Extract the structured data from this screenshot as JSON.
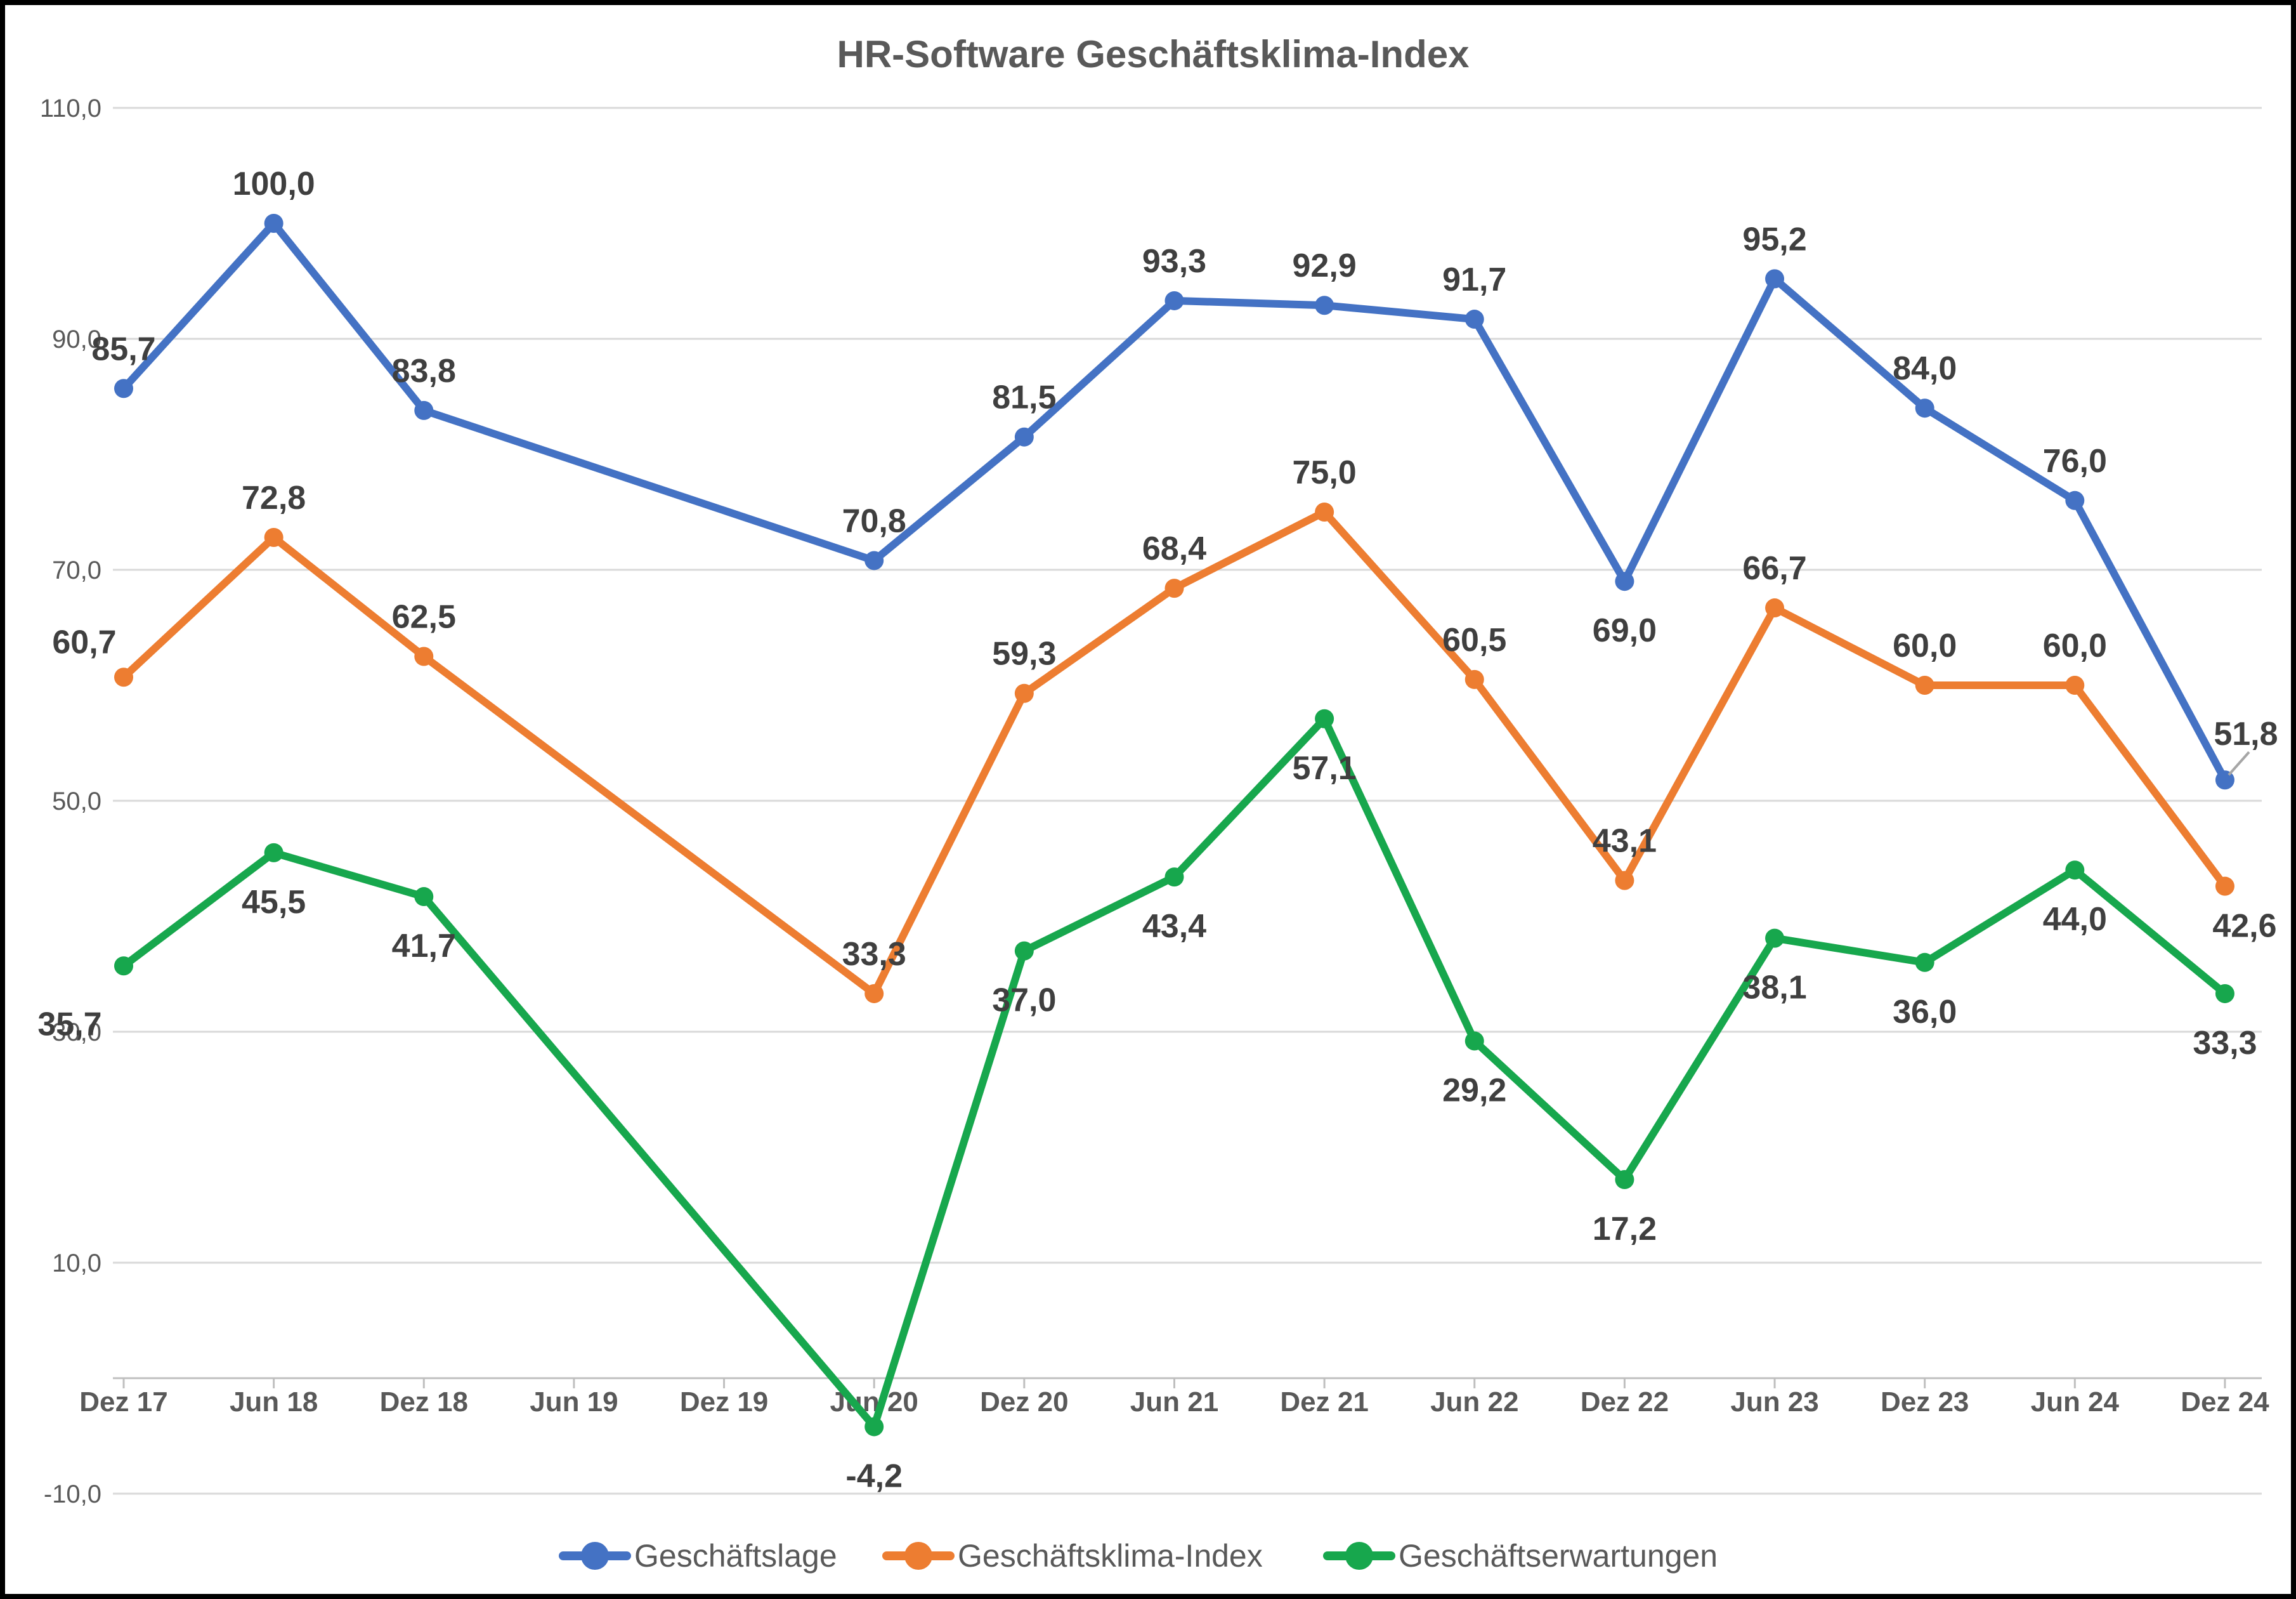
{
  "chart_data": {
    "type": "line",
    "title": "HR-Software Geschäftsklima-Index",
    "categories": [
      "Dez 17",
      "Jun 18",
      "Dez 18",
      "Jun 19",
      "Dez 19",
      "Jun 20",
      "Dez 20",
      "Jun 21",
      "Dez 21",
      "Jun 22",
      "Dez 22",
      "Jun 23",
      "Dez 23",
      "Jun 24",
      "Dez 24"
    ],
    "y_axis": {
      "min": -10,
      "max": 110,
      "step": 20,
      "tick_labels": [
        "110,0",
        "90,0",
        "70,0",
        "50,0",
        "30,0",
        "10,0",
        "-10,0"
      ],
      "grid": true
    },
    "legend_position": "bottom",
    "series": [
      {
        "name": "Geschäftslage",
        "color": "#4472C4",
        "values": [
          85.7,
          100.0,
          83.8,
          null,
          null,
          70.8,
          81.5,
          93.3,
          92.9,
          91.7,
          69.0,
          95.2,
          84.0,
          76.0,
          51.8
        ],
        "labels": [
          "85,7",
          "100,0",
          "83,8",
          null,
          null,
          "70,8",
          "81,5",
          "93,3",
          "92,9",
          "91,7",
          "69,0",
          "95,2",
          "84,0",
          "76,0",
          "51,8"
        ],
        "label_pos": [
          "above",
          "above",
          "above",
          null,
          null,
          "above",
          "above",
          "above",
          "above",
          "above",
          "below",
          "above",
          "above",
          "above",
          "above-right-leader"
        ]
      },
      {
        "name": "Geschäftsklima-Index",
        "color": "#ED7D31",
        "values": [
          60.7,
          72.8,
          62.5,
          null,
          null,
          33.3,
          59.3,
          68.4,
          75.0,
          60.5,
          43.1,
          66.7,
          60.0,
          60.0,
          42.6
        ],
        "labels": [
          "60,7",
          "72,8",
          "62,5",
          null,
          null,
          "33,3",
          "59,3",
          "68,4",
          "75,0",
          "60,5",
          "43,1",
          "66,7",
          "60,0",
          "60,0",
          "42,6"
        ],
        "label_pos": [
          "above-left",
          "above",
          "above",
          null,
          null,
          "above",
          "above",
          "above",
          "above",
          "above",
          "above",
          "above",
          "above",
          "above",
          "below-right"
        ]
      },
      {
        "name": "Geschäftserwartungen",
        "color": "#17A74D",
        "values": [
          35.7,
          45.5,
          41.7,
          null,
          null,
          -4.2,
          37.0,
          43.4,
          57.1,
          29.2,
          17.2,
          38.1,
          36.0,
          44.0,
          33.3
        ],
        "labels": [
          "35,7",
          "45,5",
          "41,7",
          null,
          null,
          "-4,2",
          "37,0",
          "43,4",
          "57,1",
          "29,2",
          "17,2",
          "38,1",
          "36,0",
          "44,0",
          "33,3"
        ],
        "label_pos": [
          "below-left",
          "below",
          "below",
          null,
          null,
          "below",
          "below",
          "below",
          "below",
          "below",
          "below",
          "below",
          "below",
          "below",
          "below"
        ]
      }
    ],
    "colors": {
      "data_label": "#3F3F3F",
      "axis_text": "#595959",
      "gridline": "#D9D9D9",
      "axis_line": "#BFBFBF",
      "leader_line": "#A6A6A6",
      "background": "#FFFFFF",
      "frame_border": "#000000"
    }
  }
}
